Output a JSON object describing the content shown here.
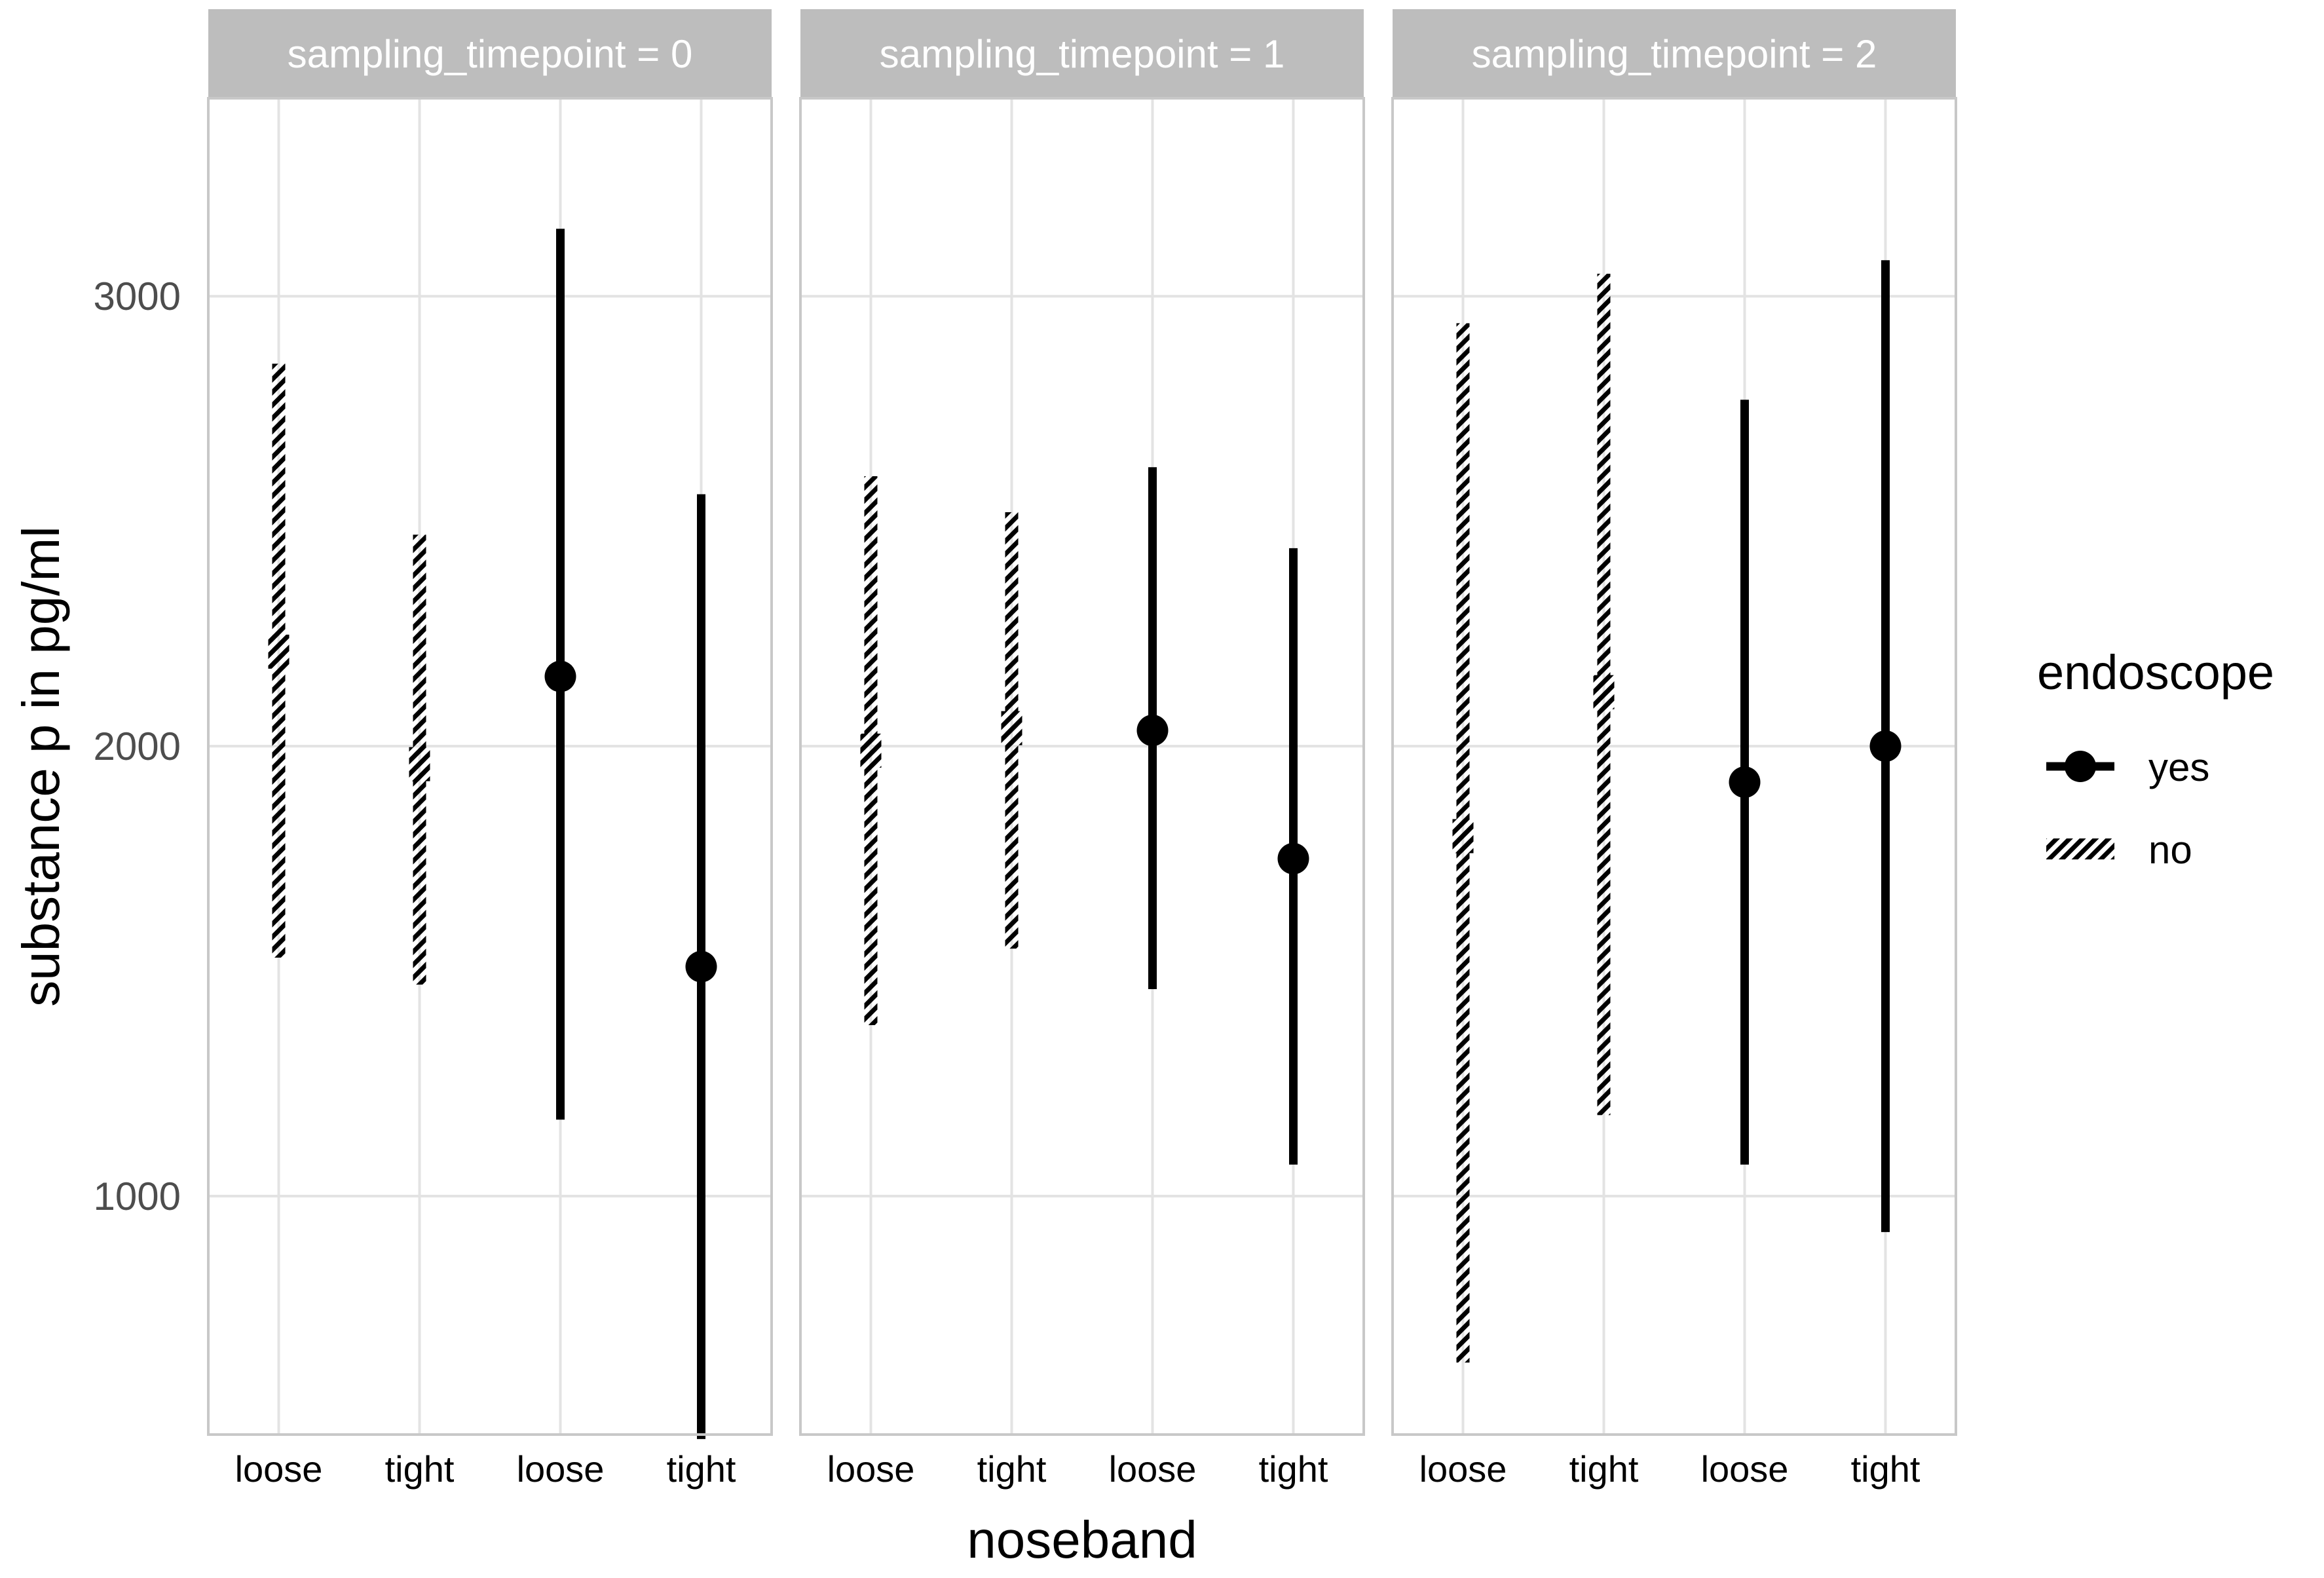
{
  "chart_data": {
    "type": "pointrange",
    "ylabel": "substance p in pg/ml",
    "xlabel": "noseband",
    "ylim": [
      470,
      3440
    ],
    "yticks": [
      1000,
      2000,
      3000
    ],
    "ytick_labels": [
      "1000",
      "2000",
      "3000"
    ],
    "categories": [
      "loose",
      "tight",
      "loose",
      "tight"
    ],
    "legend": {
      "title": "endoscope",
      "entries": [
        {
          "key": "yes",
          "label": "yes",
          "style": "solid"
        },
        {
          "key": "no",
          "label": "no",
          "style": "hatched"
        }
      ]
    },
    "panels": [
      {
        "strip_label": "sampling_timepoint = 0",
        "points": [
          {
            "category_index": 0,
            "endoscope": "no",
            "value": 2210,
            "low": 1530,
            "high": 2850
          },
          {
            "category_index": 1,
            "endoscope": "no",
            "value": 1960,
            "low": 1470,
            "high": 2470
          },
          {
            "category_index": 2,
            "endoscope": "yes",
            "value": 2155,
            "low": 1170,
            "high": 3150
          },
          {
            "category_index": 3,
            "endoscope": "yes",
            "value": 1510,
            "low": 460,
            "high": 2560
          }
        ]
      },
      {
        "strip_label": "sampling_timepoint = 1",
        "points": [
          {
            "category_index": 0,
            "endoscope": "no",
            "value": 1990,
            "low": 1380,
            "high": 2600
          },
          {
            "category_index": 1,
            "endoscope": "no",
            "value": 2040,
            "low": 1550,
            "high": 2520
          },
          {
            "category_index": 2,
            "endoscope": "yes",
            "value": 2035,
            "low": 1460,
            "high": 2620
          },
          {
            "category_index": 3,
            "endoscope": "yes",
            "value": 1750,
            "low": 1070,
            "high": 2440
          }
        ]
      },
      {
        "strip_label": "sampling_timepoint = 2",
        "points": [
          {
            "category_index": 0,
            "endoscope": "no",
            "value": 1800,
            "low": 630,
            "high": 2940
          },
          {
            "category_index": 1,
            "endoscope": "no",
            "value": 2120,
            "low": 1180,
            "high": 3050
          },
          {
            "category_index": 2,
            "endoscope": "yes",
            "value": 1920,
            "low": 1070,
            "high": 2770
          },
          {
            "category_index": 3,
            "endoscope": "yes",
            "value": 2000,
            "low": 920,
            "high": 3080
          }
        ]
      }
    ]
  },
  "colors": {
    "strip_bg": "#bdbdbd",
    "strip_text": "#ffffff",
    "grid": "#e3e3e3",
    "panel_border": "#c8c8c8",
    "series": "#000000"
  }
}
